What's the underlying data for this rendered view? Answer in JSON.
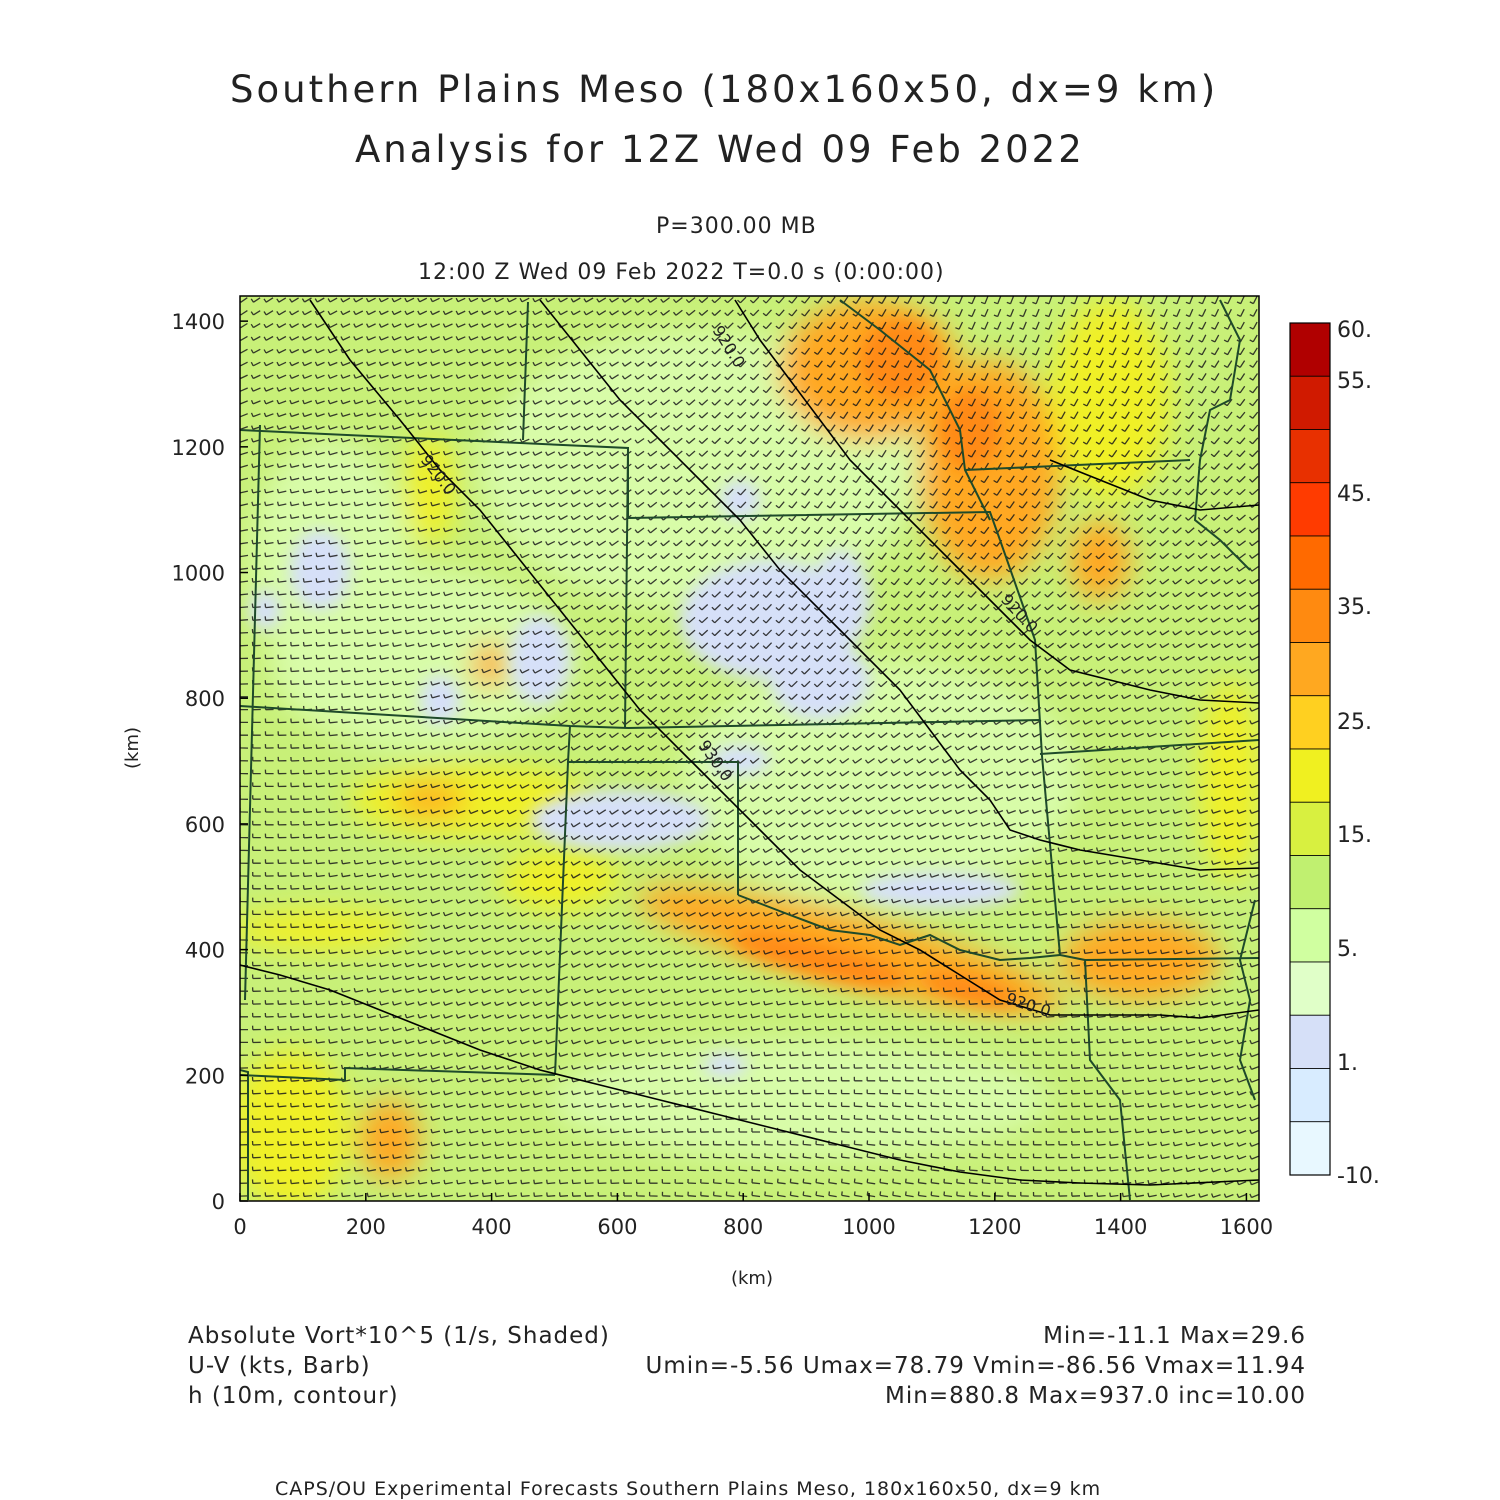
{
  "title": {
    "line1": "Southern Plains Meso (180x160x50, dx=9 km)",
    "line2": "Analysis for 12Z Wed 09 Feb 2022"
  },
  "subtitle": {
    "pressure": "P=300.00 MB",
    "time": "12:00 Z Wed 09 Feb 2022   T=0.0 s (0:00:00)"
  },
  "axes": {
    "x_label": "(km)",
    "y_label": "(km)",
    "x_range": [
      0,
      1620
    ],
    "y_range": [
      0,
      1440
    ],
    "x_ticks": [
      "0",
      "200",
      "400",
      "600",
      "800",
      "1000",
      "1200",
      "1400",
      "1600"
    ],
    "y_ticks": [
      "0",
      "200",
      "400",
      "600",
      "800",
      "1000",
      "1200",
      "1400"
    ]
  },
  "colorbar": {
    "labels": [
      "60.",
      "55.",
      "45.",
      "35.",
      "25.",
      "15.",
      "5.",
      "1.",
      "-10."
    ],
    "colors": [
      "#b00000",
      "#d01a00",
      "#e83000",
      "#ff3b00",
      "#ff6a00",
      "#ff8a10",
      "#ffa820",
      "#ffd020",
      "#f0f020",
      "#d8f040",
      "#c0f070",
      "#d0ffa0",
      "#e0ffc8",
      "#d6e0f8",
      "#d8ecff",
      "#e8f8ff"
    ]
  },
  "legend": {
    "vort_label": "Absolute Vort*10^5 (1/s, Shaded)",
    "vort_stats": "Min=-11.1 Max=29.6",
    "wind_label": "U-V (kts, Barb)",
    "wind_stats": "Umin=-5.56 Umax=78.79 Vmin=-86.56 Vmax=11.94",
    "height_label": "h (10m, contour)",
    "height_stats": "Min=880.8 Max=937.0 inc=10.00"
  },
  "contour_labels": [
    "920.0",
    "920.0",
    "920.0",
    "930.0",
    "920.0"
  ],
  "footer": "CAPS/OU Experimental Forecasts  Southern Plains Meso, 180x160x50, dx=9 km",
  "map_colors": {
    "base": "#c8f078",
    "light": "#d8fca8",
    "yellow": "#f0f028",
    "orange": "#ffa820",
    "dark_orange": "#ff8a18",
    "blue": "#d6e0f8",
    "state_line": "#1e4a2a",
    "contour": "#000000",
    "barb": "#1a1a1a"
  }
}
